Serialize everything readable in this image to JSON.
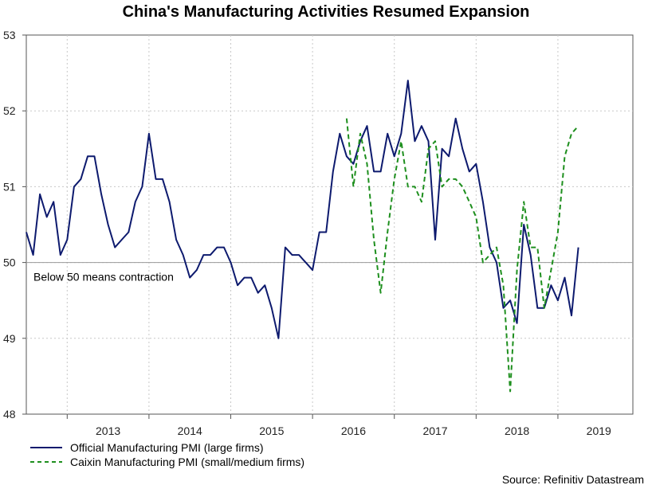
{
  "title": "China's Manufacturing Activities Resumed Expansion",
  "source": "Source: Refinitiv Datastream",
  "colors": {
    "official": "#0d1a6e",
    "caixin": "#1e8f1e",
    "grid": "#c8c8c8",
    "axis": "#555555",
    "reference": "#9a9a9a"
  },
  "chart_data": {
    "type": "line",
    "title": "China's Manufacturing Activities Resumed Expansion",
    "xlabel": "",
    "ylabel": "",
    "ylim": [
      48,
      53
    ],
    "yticks": [
      48,
      49,
      50,
      51,
      52,
      53
    ],
    "xlim": [
      2012.5,
      2019.9167
    ],
    "year_labels": [
      "2013",
      "2014",
      "2015",
      "2016",
      "2017",
      "2018",
      "2019"
    ],
    "grid": true,
    "legend_position": "bottom-left",
    "reference_line": {
      "y": 50,
      "label": "Below 50 means contraction"
    },
    "series": [
      {
        "name": "Official Manufacturing PMI (large firms)",
        "style": "solid",
        "start": 2012.5,
        "step": 0.08333,
        "values": [
          50.4,
          50.1,
          50.9,
          50.6,
          50.8,
          50.1,
          50.3,
          51.0,
          51.1,
          51.4,
          51.4,
          50.9,
          50.5,
          50.2,
          50.3,
          50.4,
          50.8,
          51.0,
          51.7,
          51.1,
          51.1,
          50.8,
          50.3,
          50.1,
          49.8,
          49.9,
          50.1,
          50.1,
          50.2,
          50.2,
          50.0,
          49.7,
          49.8,
          49.8,
          49.6,
          49.7,
          49.4,
          49.0,
          50.2,
          50.1,
          50.1,
          50.0,
          49.9,
          50.4,
          50.4,
          51.2,
          51.7,
          51.4,
          51.3,
          51.6,
          51.8,
          51.2,
          51.2,
          51.7,
          51.4,
          51.7,
          52.4,
          51.6,
          51.8,
          51.6,
          50.3,
          51.5,
          51.4,
          51.9,
          51.5,
          51.2,
          51.3,
          50.8,
          50.2,
          50.0,
          49.4,
          49.5,
          49.2,
          50.5,
          50.1,
          49.4,
          49.4,
          49.7,
          49.5,
          49.8,
          49.3,
          50.2
        ]
      },
      {
        "name": "Caixin Manufacturing PMI (small/medium firms)",
        "style": "dashed",
        "start": 2016.4167,
        "step": 0.08333,
        "values": [
          51.9,
          51.0,
          51.7,
          51.3,
          50.3,
          49.6,
          50.4,
          51.1,
          51.6,
          51.0,
          51.0,
          50.8,
          51.5,
          51.6,
          51.0,
          51.1,
          51.1,
          51.0,
          50.8,
          50.6,
          50.0,
          50.1,
          50.2,
          49.7,
          48.3,
          49.9,
          50.8,
          50.2,
          50.2,
          49.4,
          49.9,
          50.4,
          51.4,
          51.7,
          51.8
        ]
      }
    ]
  }
}
